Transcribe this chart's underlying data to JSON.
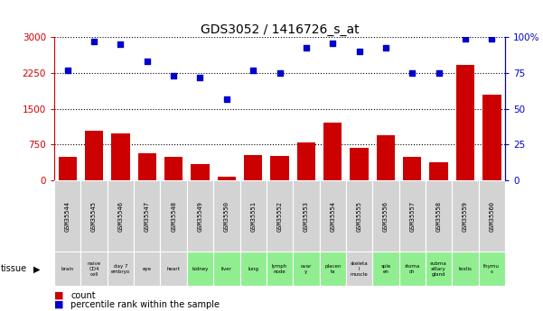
{
  "title": "GDS3052 / 1416726_s_at",
  "gsm_labels": [
    "GSM35544",
    "GSM35545",
    "GSM35546",
    "GSM35547",
    "GSM35548",
    "GSM35549",
    "GSM35550",
    "GSM35551",
    "GSM35552",
    "GSM35553",
    "GSM35554",
    "GSM35555",
    "GSM35556",
    "GSM35557",
    "GSM35558",
    "GSM35559",
    "GSM35560"
  ],
  "tissue_labels": [
    "brain",
    "naive\nCD4\ncell",
    "day 7\nembryо",
    "eye",
    "heart",
    "kidney",
    "liver",
    "lung",
    "lymph\nnode",
    "ovar\ny",
    "placen\nta",
    "skeleta\nl\nmuscle",
    "sple\nen",
    "stoma\nch",
    "subma\nxillary\ngland",
    "testis",
    "thymu\ns"
  ],
  "tissue_colors": [
    "#d3d3d3",
    "#d3d3d3",
    "#d3d3d3",
    "#d3d3d3",
    "#d3d3d3",
    "#90ee90",
    "#90ee90",
    "#90ee90",
    "#90ee90",
    "#90ee90",
    "#90ee90",
    "#d3d3d3",
    "#90ee90",
    "#90ee90",
    "#90ee90",
    "#90ee90",
    "#90ee90"
  ],
  "counts": [
    500,
    1050,
    980,
    560,
    490,
    350,
    75,
    530,
    510,
    790,
    1220,
    680,
    950,
    490,
    380,
    2420,
    1800
  ],
  "percentiles": [
    77,
    97,
    95,
    83,
    73,
    72,
    57,
    77,
    75,
    93,
    96,
    90,
    93,
    75,
    75,
    99,
    99
  ],
  "count_color": "#cc0000",
  "percentile_color": "#0000cc",
  "left_ylim": [
    0,
    3000
  ],
  "right_ylim": [
    0,
    100
  ],
  "left_yticks": [
    0,
    750,
    1500,
    2250,
    3000
  ],
  "right_yticks": [
    0,
    25,
    50,
    75,
    100
  ],
  "right_yticklabels": [
    "0",
    "25",
    "50",
    "75",
    "100%"
  ]
}
